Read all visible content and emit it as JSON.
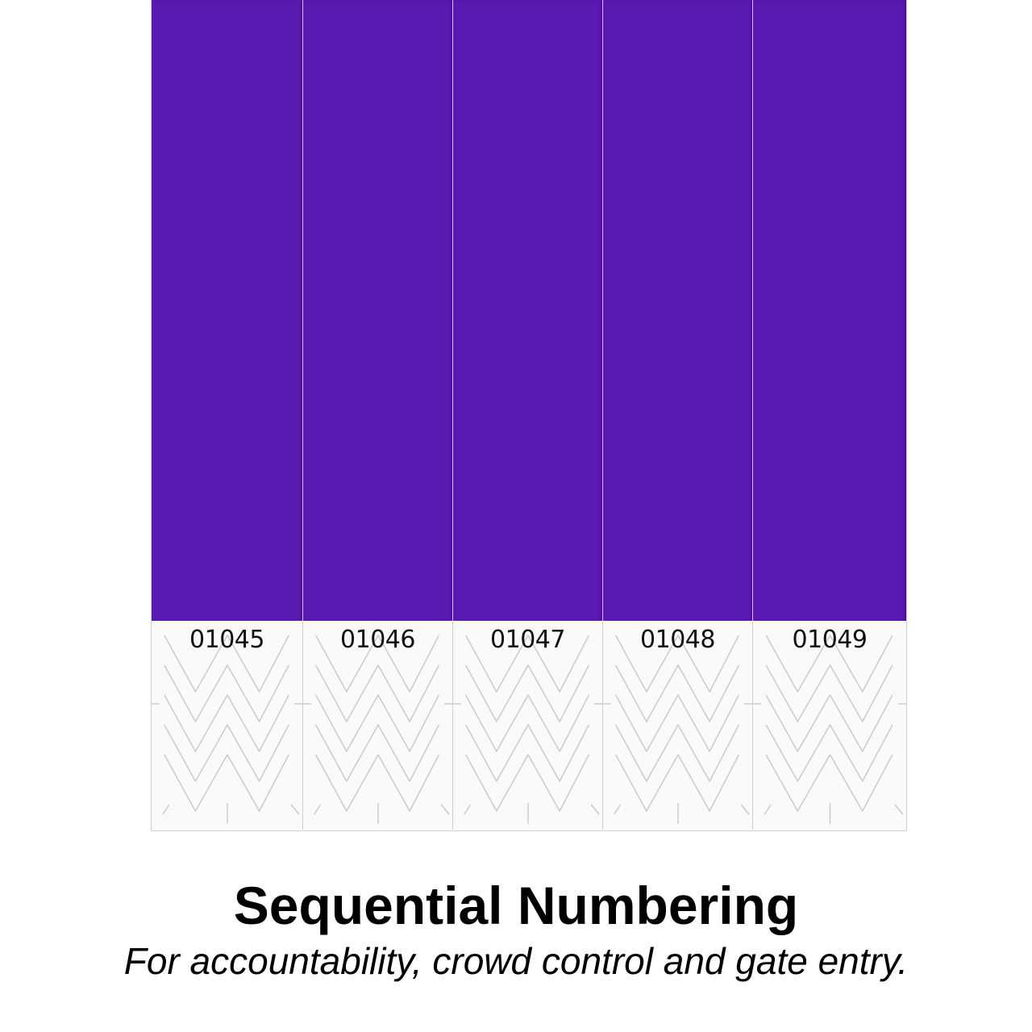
{
  "colors": {
    "band": "#5a19b1",
    "tab": "#fafafa",
    "text": "#000000"
  },
  "wristbands": [
    {
      "number": "01045"
    },
    {
      "number": "01046"
    },
    {
      "number": "01047"
    },
    {
      "number": "01048"
    },
    {
      "number": "01049"
    }
  ],
  "caption": {
    "title": "Sequential Numbering",
    "subtitle": "For accountability, crowd control and gate entry."
  }
}
